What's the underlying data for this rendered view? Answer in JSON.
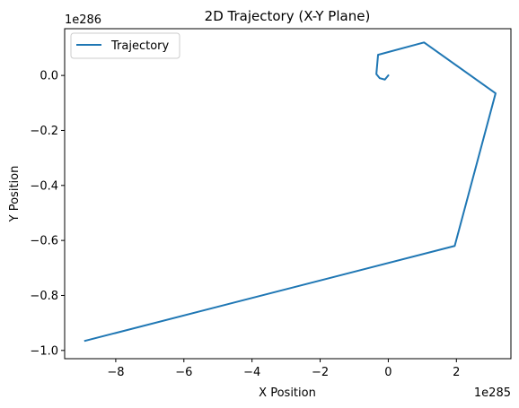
{
  "chart_data": {
    "type": "line",
    "title": "2D Trajectory (X-Y Plane)",
    "xlabel": "X Position",
    "ylabel": "Y Position",
    "x_offset_label": "1e285",
    "y_offset_label": "1e286",
    "x_scale": 1e+285,
    "y_scale": 1e+286,
    "xlim": [
      -9.5,
      3.6
    ],
    "ylim": [
      -1.03,
      0.17
    ],
    "xticks": [
      -8,
      -6,
      -4,
      -2,
      0,
      2
    ],
    "xtick_labels": [
      "−8",
      "−6",
      "−4",
      "−2",
      "0",
      "2"
    ],
    "yticks": [
      0.0,
      -0.2,
      -0.4,
      -0.6,
      -0.8,
      -1.0
    ],
    "ytick_labels": [
      "0.0",
      "−0.2",
      "−0.4",
      "−0.6",
      "−0.8",
      "−1.0"
    ],
    "grid": false,
    "legend_position": "top-left",
    "series": [
      {
        "name": "Trajectory",
        "color": "#1f77b4",
        "x": [
          0.0,
          -0.1,
          -0.25,
          -0.35,
          -0.3,
          1.05,
          3.15,
          1.95,
          -8.9
        ],
        "y": [
          0.0,
          -0.015,
          -0.01,
          0.005,
          0.075,
          0.12,
          -0.065,
          -0.62,
          -0.965
        ]
      }
    ]
  }
}
